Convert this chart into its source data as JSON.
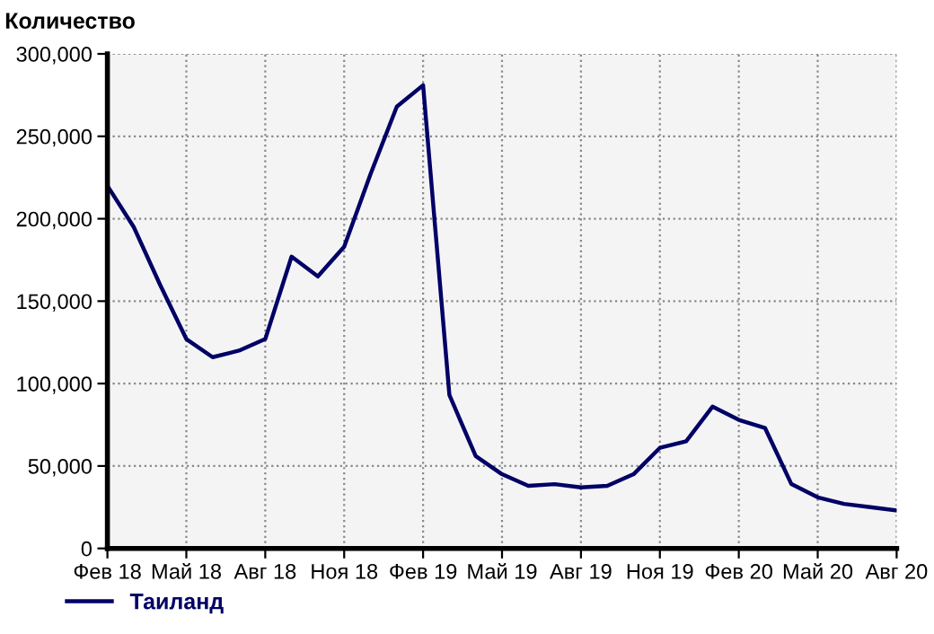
{
  "chart_data": {
    "type": "line",
    "title": "Количество",
    "x": [
      "2018-02",
      "2018-03",
      "2018-04",
      "2018-05",
      "2018-06",
      "2018-07",
      "2018-08",
      "2018-09",
      "2018-10",
      "2018-11",
      "2018-12",
      "2019-01",
      "2019-02",
      "2019-03",
      "2019-04",
      "2019-05",
      "2019-06",
      "2019-07",
      "2019-08",
      "2019-09",
      "2019-10",
      "2019-11",
      "2019-12",
      "2020-01",
      "2020-02",
      "2020-03",
      "2020-04",
      "2020-05",
      "2020-06",
      "2020-07",
      "2020-08"
    ],
    "series": [
      {
        "name": "Таиланд",
        "color": "#000066",
        "values": [
          220000,
          195000,
          160000,
          127000,
          116000,
          120000,
          127000,
          177000,
          165000,
          183000,
          227000,
          268000,
          281000,
          93000,
          56000,
          45000,
          38000,
          39000,
          37000,
          38000,
          45000,
          61000,
          65000,
          86000,
          78000,
          73000,
          39000,
          31000,
          27000,
          25000,
          23000
        ]
      }
    ],
    "xlim": [
      "2018-02",
      "2020-08"
    ],
    "xticks": [
      {
        "value": "2018-02",
        "label": "Фев 18"
      },
      {
        "value": "2018-05",
        "label": "Май 18"
      },
      {
        "value": "2018-08",
        "label": "Авг 18"
      },
      {
        "value": "2018-11",
        "label": "Ноя 18"
      },
      {
        "value": "2019-02",
        "label": "Фев 19"
      },
      {
        "value": "2019-05",
        "label": "Май 19"
      },
      {
        "value": "2019-08",
        "label": "Авг 19"
      },
      {
        "value": "2019-11",
        "label": "Ноя 19"
      },
      {
        "value": "2020-02",
        "label": "Фев 20"
      },
      {
        "value": "2020-05",
        "label": "Май 20"
      },
      {
        "value": "2020-08",
        "label": "Авг 20"
      }
    ],
    "ylim": [
      0,
      300000
    ],
    "yticks": [
      {
        "value": 0,
        "label": "0"
      },
      {
        "value": 50000,
        "label": "50,000"
      },
      {
        "value": 100000,
        "label": "100,000"
      },
      {
        "value": 150000,
        "label": "150,000"
      },
      {
        "value": 200000,
        "label": "200,000"
      },
      {
        "value": 250000,
        "label": "250,000"
      },
      {
        "value": 300000,
        "label": "300,000"
      }
    ],
    "grid": true,
    "legend": "bottom left",
    "marker": "none",
    "line_style": "solid"
  }
}
